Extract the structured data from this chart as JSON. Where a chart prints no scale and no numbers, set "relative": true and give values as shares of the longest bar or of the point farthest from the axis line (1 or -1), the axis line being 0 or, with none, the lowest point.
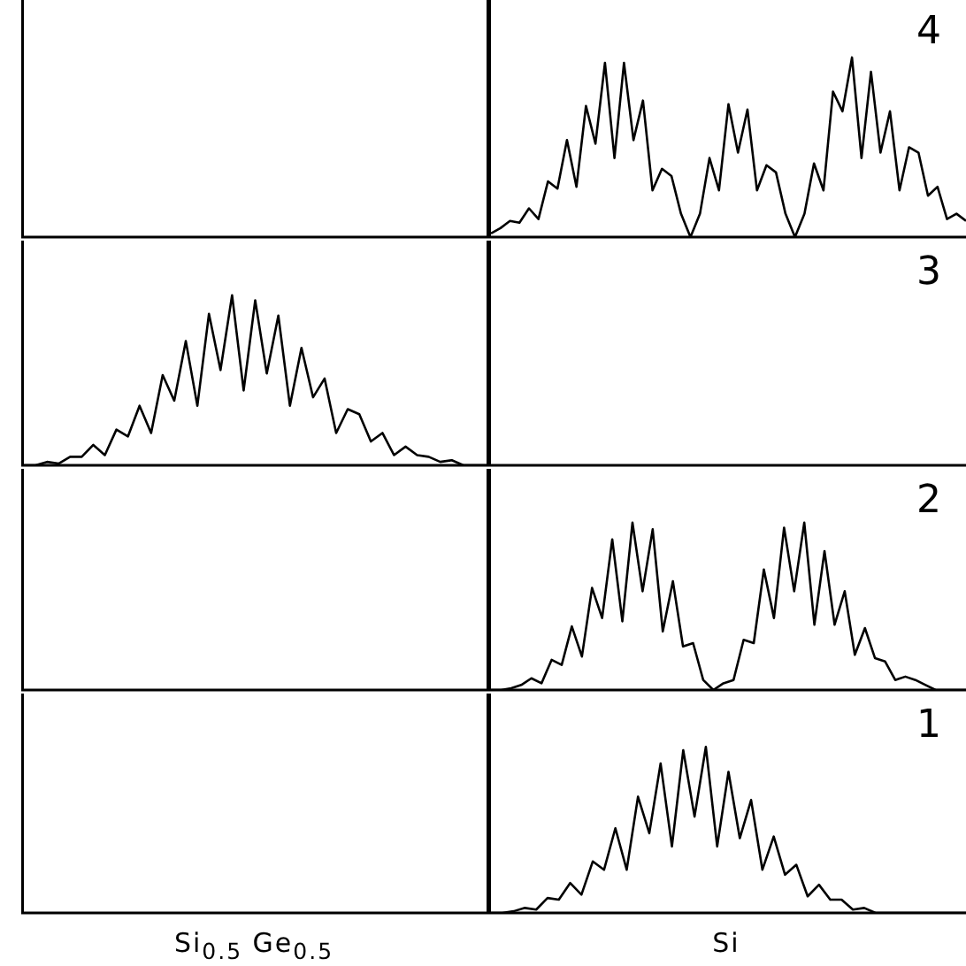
{
  "chart_data": [
    {
      "type": "other"
    },
    {
      "type": "line",
      "relative": true,
      "annotations": [
        "4"
      ],
      "categories": [
        null,
        null,
        null,
        null,
        null,
        null,
        null,
        null,
        null,
        null,
        null,
        null,
        null,
        null,
        null,
        null,
        null,
        null,
        null,
        null,
        null,
        null,
        null,
        null,
        null,
        null,
        null,
        null,
        null,
        null,
        null,
        null,
        null,
        null,
        null,
        null,
        null,
        null,
        null,
        null,
        null,
        null,
        null,
        null,
        null,
        null,
        null,
        null,
        null,
        null,
        null
      ],
      "series": [
        {
          "color": "#000000",
          "values": [
            0.02,
            0.05,
            0.09,
            0.08,
            0.16,
            0.1,
            0.31,
            0.27,
            0.54,
            0.28,
            0.73,
            0.52,
            0.97,
            0.44,
            0.97,
            0.54,
            0.76,
            0.26,
            0.38,
            0.34,
            0.13,
            0,
            0.13,
            0.44,
            0.26,
            0.74,
            0.47,
            0.71,
            0.26,
            0.4,
            0.36,
            0.13,
            0,
            0.13,
            0.41,
            0.26,
            0.81,
            0.7,
            1,
            0.44,
            0.92,
            0.47,
            0.7,
            0.26,
            0.5,
            0.47,
            0.23,
            0.28,
            0.1,
            0.13,
            0.09
          ]
        }
      ]
    },
    {
      "type": "line",
      "relative": true,
      "categories": [
        null,
        null,
        null,
        null,
        null,
        null,
        null,
        null,
        null,
        null,
        null,
        null,
        null,
        null,
        null,
        null,
        null,
        null,
        null,
        null,
        null,
        null,
        null,
        null,
        null,
        null,
        null,
        null,
        null,
        null,
        null,
        null,
        null,
        null,
        null,
        null,
        null,
        null,
        null,
        null,
        null
      ],
      "series": [
        {
          "color": "#000000",
          "values": [
            0,
            0,
            0.02,
            0.01,
            0.05,
            0.05,
            0.12,
            0.06,
            0.21,
            0.17,
            0.35,
            0.19,
            0.53,
            0.38,
            0.73,
            0.35,
            0.89,
            0.56,
            1,
            0.44,
            0.97,
            0.54,
            0.88,
            0.35,
            0.69,
            0.4,
            0.51,
            0.19,
            0.33,
            0.3,
            0.14,
            0.19,
            0.06,
            0.11,
            0.06,
            0.05,
            0.02,
            0.03,
            0,
            0,
            0
          ]
        }
      ]
    },
    {
      "type": "other",
      "annotations": [
        "3"
      ]
    },
    {
      "type": "other"
    },
    {
      "type": "line",
      "relative": true,
      "annotations": [
        "2"
      ],
      "categories": [
        null,
        null,
        null,
        null,
        null,
        null,
        null,
        null,
        null,
        null,
        null,
        null,
        null,
        null,
        null,
        null,
        null,
        null,
        null,
        null,
        null,
        null,
        null,
        null,
        null,
        null,
        null,
        null,
        null,
        null,
        null,
        null,
        null,
        null,
        null,
        null,
        null,
        null,
        null,
        null,
        null,
        null,
        null,
        null,
        null,
        null,
        null,
        null
      ],
      "series": [
        {
          "color": "#000000",
          "values": [
            0,
            0,
            0.01,
            0.03,
            0.07,
            0.04,
            0.18,
            0.15,
            0.38,
            0.2,
            0.61,
            0.43,
            0.9,
            0.41,
            1,
            0.59,
            0.96,
            0.35,
            0.65,
            0.26,
            0.28,
            0.06,
            0,
            0.04,
            0.06,
            0.3,
            0.28,
            0.72,
            0.43,
            0.97,
            0.59,
            1,
            0.39,
            0.83,
            0.39,
            0.59,
            0.21,
            0.37,
            0.19,
            0.17,
            0.06,
            0.08,
            0.06,
            0.03,
            0,
            0,
            0,
            0
          ]
        }
      ]
    },
    {
      "type": "other",
      "xlabel": "Si$_{0.5}$ Ge$_{0.5}$"
    },
    {
      "type": "line",
      "relative": true,
      "annotations": [
        "1"
      ],
      "xlabel": "Si",
      "categories": [
        null,
        null,
        null,
        null,
        null,
        null,
        null,
        null,
        null,
        null,
        null,
        null,
        null,
        null,
        null,
        null,
        null,
        null,
        null,
        null,
        null,
        null,
        null,
        null,
        null,
        null,
        null,
        null,
        null,
        null,
        null,
        null,
        null,
        null,
        null,
        null,
        null,
        null,
        null,
        null,
        null,
        null,
        null
      ],
      "series": [
        {
          "color": "#000000",
          "values": [
            0,
            0,
            0.01,
            0.03,
            0.02,
            0.09,
            0.08,
            0.18,
            0.11,
            0.31,
            0.26,
            0.51,
            0.26,
            0.7,
            0.48,
            0.9,
            0.4,
            0.98,
            0.58,
            1,
            0.4,
            0.85,
            0.45,
            0.68,
            0.26,
            0.46,
            0.23,
            0.29,
            0.1,
            0.17,
            0.08,
            0.08,
            0.02,
            0.03,
            0,
            0,
            0,
            0,
            0,
            0,
            0,
            0,
            0
          ]
        }
      ]
    }
  ]
}
